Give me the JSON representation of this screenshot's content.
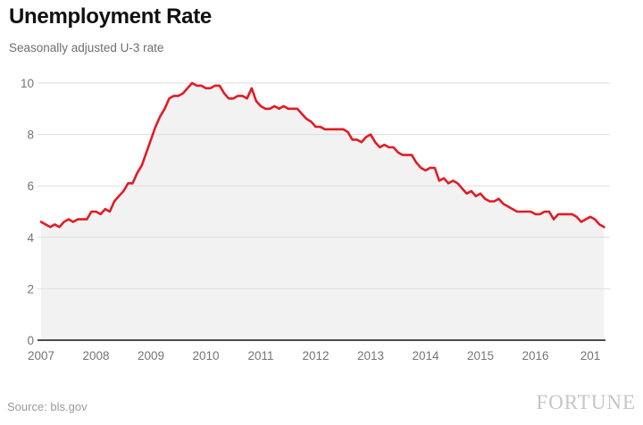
{
  "header": {
    "title": "Unemployment Rate",
    "subtitle": "Seasonally adjusted U-3 rate"
  },
  "footer": {
    "source": "Source: bls.gov",
    "brand": "FORTUNE"
  },
  "colors": {
    "line": "#e11c24",
    "area_fill": "#f2f2f2",
    "gridline": "#dddddd",
    "axis_line": "#4d4d4d",
    "tick_text": "#757575"
  },
  "chart_data": {
    "type": "line",
    "title": "Unemployment Rate",
    "subtitle": "Seasonally adjusted U-3 rate",
    "frequency": "monthly",
    "x_start": "2007-01",
    "x_end": "2017-04",
    "x_tick_labels": [
      "2007",
      "2008",
      "2009",
      "2010",
      "2011",
      "2012",
      "2013",
      "2014",
      "2015",
      "2016",
      "201"
    ],
    "y_tick_labels": [
      "0",
      "2",
      "4",
      "6",
      "8",
      "10"
    ],
    "y_ticks": [
      0,
      2,
      4,
      6,
      8,
      10
    ],
    "ylim": [
      0,
      10
    ],
    "grid": true,
    "legend": false,
    "area_under_line": true,
    "series": [
      {
        "name": "U-3 unemployment rate (%)",
        "values": [
          4.6,
          4.5,
          4.4,
          4.5,
          4.4,
          4.6,
          4.7,
          4.6,
          4.7,
          4.7,
          4.7,
          5.0,
          5.0,
          4.9,
          5.1,
          5.0,
          5.4,
          5.6,
          5.8,
          6.1,
          6.1,
          6.5,
          6.8,
          7.3,
          7.8,
          8.3,
          8.7,
          9.0,
          9.4,
          9.5,
          9.5,
          9.6,
          9.8,
          10.0,
          9.9,
          9.9,
          9.8,
          9.8,
          9.9,
          9.9,
          9.6,
          9.4,
          9.4,
          9.5,
          9.5,
          9.4,
          9.8,
          9.3,
          9.1,
          9.0,
          9.0,
          9.1,
          9.0,
          9.1,
          9.0,
          9.0,
          9.0,
          8.8,
          8.6,
          8.5,
          8.3,
          8.3,
          8.2,
          8.2,
          8.2,
          8.2,
          8.2,
          8.1,
          7.8,
          7.8,
          7.7,
          7.9,
          8.0,
          7.7,
          7.5,
          7.6,
          7.5,
          7.5,
          7.3,
          7.2,
          7.2,
          7.2,
          6.9,
          6.7,
          6.6,
          6.7,
          6.7,
          6.2,
          6.3,
          6.1,
          6.2,
          6.1,
          5.9,
          5.7,
          5.8,
          5.6,
          5.7,
          5.5,
          5.4,
          5.4,
          5.5,
          5.3,
          5.2,
          5.1,
          5.0,
          5.0,
          5.0,
          5.0,
          4.9,
          4.9,
          5.0,
          5.0,
          4.7,
          4.9,
          4.9,
          4.9,
          4.9,
          4.8,
          4.6,
          4.7,
          4.8,
          4.7,
          4.5,
          4.4
        ]
      }
    ]
  }
}
